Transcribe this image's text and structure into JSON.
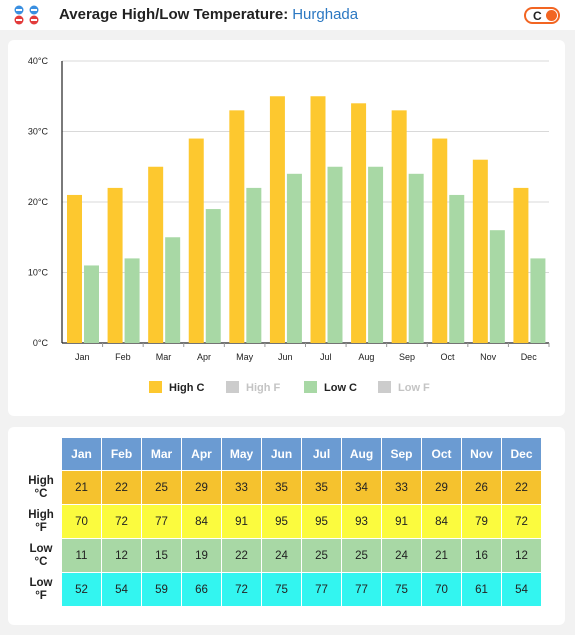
{
  "header": {
    "title": "Average High/Low Temperature:",
    "location": "Hurghada",
    "unit_toggle_label": "C",
    "accent_color": "#f26522",
    "app_icon": "weather-app-icon"
  },
  "chart_data": {
    "type": "bar",
    "categories": [
      "Jan",
      "Feb",
      "Mar",
      "Apr",
      "May",
      "Jun",
      "Jul",
      "Aug",
      "Sep",
      "Oct",
      "Nov",
      "Dec"
    ],
    "series": [
      {
        "name": "High C",
        "values": [
          21,
          22,
          25,
          29,
          33,
          35,
          35,
          34,
          33,
          29,
          26,
          22
        ],
        "color": "#fdc82f",
        "visible": true
      },
      {
        "name": "High F",
        "values": [
          70,
          72,
          77,
          84,
          91,
          95,
          95,
          93,
          91,
          84,
          79,
          72
        ],
        "color": "#cccccc",
        "visible": false
      },
      {
        "name": "Low C",
        "values": [
          11,
          12,
          15,
          19,
          22,
          24,
          25,
          25,
          24,
          21,
          16,
          12
        ],
        "color": "#a8d8a5",
        "visible": true
      },
      {
        "name": "Low F",
        "values": [
          52,
          54,
          59,
          66,
          72,
          75,
          77,
          77,
          75,
          70,
          61,
          54
        ],
        "color": "#cccccc",
        "visible": false
      }
    ],
    "y_ticks": [
      "0°C",
      "10°C",
      "20°C",
      "30°C",
      "40°C"
    ],
    "ylim": [
      0,
      40
    ],
    "grid": true,
    "legend_position": "bottom"
  },
  "table": {
    "months": [
      "Jan",
      "Feb",
      "Mar",
      "Apr",
      "May",
      "Jun",
      "Jul",
      "Aug",
      "Sep",
      "Oct",
      "Nov",
      "Dec"
    ],
    "rows": [
      {
        "label_line1": "High",
        "label_line2": "°C",
        "values": [
          "21",
          "22",
          "25",
          "29",
          "33",
          "35",
          "35",
          "34",
          "33",
          "29",
          "26",
          "22"
        ]
      },
      {
        "label_line1": "High",
        "label_line2": "°F",
        "values": [
          "70",
          "72",
          "77",
          "84",
          "91",
          "95",
          "95",
          "93",
          "91",
          "84",
          "79",
          "72"
        ]
      },
      {
        "label_line1": "Low",
        "label_line2": "°C",
        "values": [
          "11",
          "12",
          "15",
          "19",
          "22",
          "24",
          "25",
          "25",
          "24",
          "21",
          "16",
          "12"
        ]
      },
      {
        "label_line1": "Low",
        "label_line2": "°F",
        "values": [
          "52",
          "54",
          "59",
          "66",
          "72",
          "75",
          "77",
          "77",
          "75",
          "70",
          "61",
          "54"
        ]
      }
    ]
  }
}
